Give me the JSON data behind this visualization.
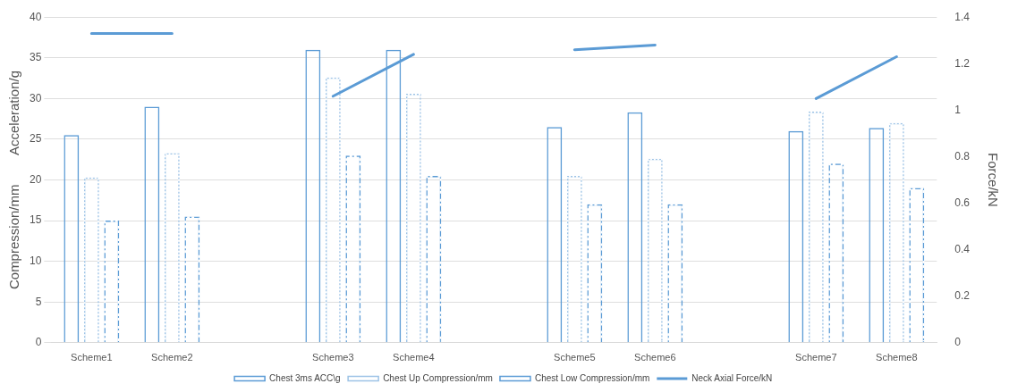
{
  "chart_data": {
    "type": "bar",
    "categories": [
      "Scheme1",
      "Scheme2",
      null,
      "Scheme3",
      "Scheme4",
      null,
      "Scheme5",
      "Scheme6",
      null,
      "Scheme7",
      "Scheme8"
    ],
    "ylabel": "Compression/mm        Acceleration/g",
    "y2label": "Force/kN",
    "ylim": [
      0,
      40
    ],
    "yticks": [
      0,
      5,
      10,
      15,
      20,
      25,
      30,
      35,
      40
    ],
    "y2lim": [
      0,
      1.4
    ],
    "y2ticks": [
      0,
      0.2,
      0.4,
      0.6,
      0.8,
      1,
      1.2,
      1.4
    ],
    "grid": "y",
    "legend": "bottom",
    "series": [
      {
        "name": "Chest 3ms ACC\\g",
        "color": "#5b9bd5",
        "line_style": "solid",
        "values": [
          25.5,
          29,
          null,
          36,
          36,
          null,
          26.5,
          28.3,
          null,
          26,
          26.4
        ]
      },
      {
        "name": "Chest Up Compression/mm",
        "color": "#9dc3e6",
        "line_style": "dotted",
        "values": [
          20.3,
          23.3,
          null,
          32.6,
          30.6,
          null,
          20.5,
          22.6,
          null,
          28.4,
          27
        ]
      },
      {
        "name": "Chest Low Compression/mm",
        "color": "#5b9bd5",
        "line_style": "dashed",
        "values": [
          15,
          15.5,
          null,
          23,
          20.5,
          null,
          17,
          17,
          null,
          22,
          19
        ]
      },
      {
        "name": "Neck Axial Force/kN",
        "type": "line",
        "axis": "y2",
        "color": "#5b9bd5",
        "line_style": "solid",
        "values": [
          1.33,
          1.33,
          null,
          1.06,
          1.24,
          null,
          1.26,
          1.28,
          null,
          1.05,
          1.23
        ]
      }
    ]
  }
}
